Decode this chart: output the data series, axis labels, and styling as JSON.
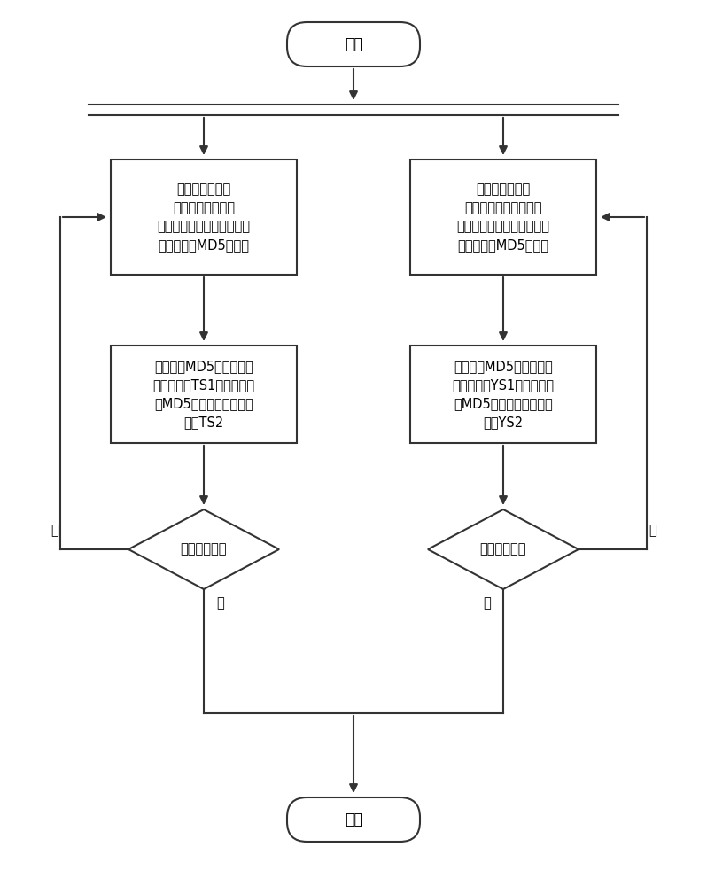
{
  "bg_color": "#ffffff",
  "line_color": "#333333",
  "box_fill": "#ffffff",
  "text_color": "#000000",
  "start_label": "开始",
  "end_label": "结束",
  "left_box1_text": "读取主用数据库\n中的一条记录，将\n主键值与其对应的整条记录\n的值转化成MD5散列值",
  "right_box1_text": "读取备用数据库\n中数据的一条记录，将\n主键值与其对应的整条记录\n的值转化成MD5散列值",
  "left_box2_text": "业务主键MD5散列值存入\n字符串数组TS1，整条记录\n的MD5散列值存入字符串\n数组TS2",
  "right_box2_text": "业务主键MD5散列值存入\n字符串数组YS1，整条记录\n的MD5散列值存入字符串\n数组YS2",
  "left_diamond_text": "文件是否读完",
  "right_diamond_text": "文件是否读完",
  "yes_label": "是",
  "no_label": "否",
  "font_size": 11.5,
  "small_font_size": 10.5,
  "lw": 1.5
}
